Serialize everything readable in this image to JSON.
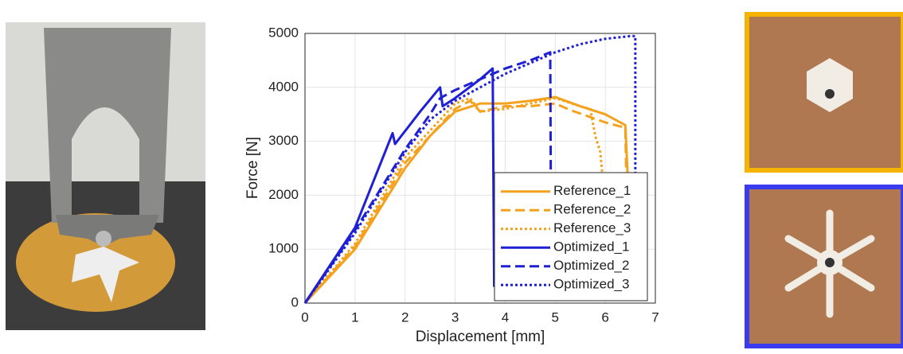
{
  "chart_data": {
    "type": "line",
    "xlabel": "Displacement [mm]",
    "ylabel": "Force [N]",
    "xlim": [
      0,
      7
    ],
    "xticks": [
      0,
      1,
      2,
      3,
      4,
      5,
      6,
      7
    ],
    "ylim": [
      0,
      5000
    ],
    "yticks": [
      0,
      1000,
      2000,
      3000,
      4000,
      5000
    ],
    "grid": true,
    "legend": "lower right",
    "series": [
      {
        "name": "Reference_1",
        "color": "#f4a21e",
        "line_style": "solid",
        "x": [
          0,
          1,
          2,
          2.5,
          3,
          3.5,
          4,
          4.5,
          5,
          5.5,
          6,
          6.4,
          6.45
        ],
        "values": [
          0,
          1000,
          2500,
          3100,
          3550,
          3700,
          3700,
          3750,
          3820,
          3650,
          3500,
          3300,
          2300
        ]
      },
      {
        "name": "Reference_2",
        "color": "#f4a21e",
        "line_style": "dashed",
        "x": [
          0,
          1,
          2,
          3,
          3.3,
          3.5,
          4,
          4.5,
          5,
          5.3,
          6,
          6.4,
          6.42
        ],
        "values": [
          0,
          1050,
          2600,
          3600,
          3750,
          3550,
          3650,
          3650,
          3700,
          3580,
          3350,
          3250,
          2300
        ]
      },
      {
        "name": "Reference_3",
        "color": "#f4a21e",
        "line_style": "dotted",
        "x": [
          0,
          1,
          2,
          3,
          3.3,
          3.5,
          4,
          4.5,
          5,
          5.5,
          5.7,
          5.8,
          5.9,
          5.95
        ],
        "values": [
          0,
          1100,
          2700,
          3700,
          3800,
          3550,
          3600,
          3700,
          3800,
          3650,
          3600,
          3100,
          2800,
          2300
        ]
      },
      {
        "name": "Optimized_1",
        "color": "#1f1fd6",
        "line_style": "solid",
        "x": [
          0,
          1,
          1.75,
          1.8,
          2.3,
          2.7,
          2.75,
          3,
          3.5,
          3.75,
          3.78
        ],
        "values": [
          0,
          1400,
          3150,
          2950,
          3550,
          4000,
          3650,
          3800,
          4150,
          4350,
          300
        ]
      },
      {
        "name": "Optimized_2",
        "color": "#1f1fd6",
        "line_style": "dashed",
        "x": [
          0,
          1,
          2,
          2.5,
          2.7,
          3,
          3.5,
          4,
          4.5,
          4.9,
          4.92
        ],
        "values": [
          0,
          1350,
          2850,
          3500,
          3800,
          3950,
          4150,
          4350,
          4500,
          4650,
          300
        ]
      },
      {
        "name": "Optimized_3",
        "color": "#1f1fd6",
        "line_style": "dotted",
        "x": [
          0,
          1,
          2,
          2.5,
          3,
          3.5,
          4,
          4.5,
          5,
          5.5,
          6,
          6.5,
          6.6,
          6.6
        ],
        "values": [
          0,
          1300,
          2800,
          3400,
          3750,
          4000,
          4250,
          4450,
          4650,
          4800,
          4900,
          4950,
          4950,
          300
        ]
      }
    ]
  }
}
